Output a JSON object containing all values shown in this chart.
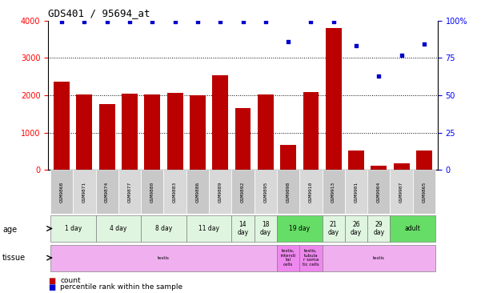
{
  "title": "GDS401 / 95694_at",
  "samples": [
    "GSM9868",
    "GSM9871",
    "GSM9874",
    "GSM9877",
    "GSM9880",
    "GSM9883",
    "GSM9886",
    "GSM9889",
    "GSM9892",
    "GSM9895",
    "GSM9898",
    "GSM9910",
    "GSM9913",
    "GSM9901",
    "GSM9904",
    "GSM9907",
    "GSM9865"
  ],
  "counts": [
    2370,
    2010,
    1760,
    2050,
    2010,
    2060,
    1990,
    2530,
    1660,
    2020,
    660,
    2080,
    3790,
    510,
    110,
    180,
    520
  ],
  "percentiles": [
    99,
    99,
    99,
    99,
    99,
    99,
    99,
    99,
    99,
    99,
    86,
    99,
    99,
    83,
    63,
    77,
    84
  ],
  "age_groups": [
    {
      "label": "1 day",
      "start": 0,
      "end": 2,
      "color": "#e0f5e0"
    },
    {
      "label": "4 day",
      "start": 2,
      "end": 4,
      "color": "#e0f5e0"
    },
    {
      "label": "8 day",
      "start": 4,
      "end": 6,
      "color": "#e0f5e0"
    },
    {
      "label": "11 day",
      "start": 6,
      "end": 8,
      "color": "#e0f5e0"
    },
    {
      "label": "14\nday",
      "start": 8,
      "end": 9,
      "color": "#e0f5e0"
    },
    {
      "label": "18\nday",
      "start": 9,
      "end": 10,
      "color": "#e0f5e0"
    },
    {
      "label": "19 day",
      "start": 10,
      "end": 12,
      "color": "#66dd66"
    },
    {
      "label": "21\nday",
      "start": 12,
      "end": 13,
      "color": "#e0f5e0"
    },
    {
      "label": "26\nday",
      "start": 13,
      "end": 14,
      "color": "#e0f5e0"
    },
    {
      "label": "29\nday",
      "start": 14,
      "end": 15,
      "color": "#e0f5e0"
    },
    {
      "label": "adult",
      "start": 15,
      "end": 17,
      "color": "#66dd66"
    }
  ],
  "tissue_groups": [
    {
      "label": "testis",
      "start": 0,
      "end": 10,
      "color": "#f0b0f0"
    },
    {
      "label": "testis,\nintersti\ntal\ncells",
      "start": 10,
      "end": 11,
      "color": "#ee88ee"
    },
    {
      "label": "testis,\ntubula\nr soma\ntic cells",
      "start": 11,
      "end": 12,
      "color": "#ee88ee"
    },
    {
      "label": "testis",
      "start": 12,
      "end": 17,
      "color": "#f0b0f0"
    }
  ],
  "bar_color": "#bb0000",
  "dot_color": "#0000cc",
  "ylim_left": [
    0,
    4000
  ],
  "ylim_right": [
    0,
    100
  ],
  "yticks_left": [
    0,
    1000,
    2000,
    3000,
    4000
  ],
  "yticks_right": [
    0,
    25,
    50,
    75,
    100
  ],
  "background_color": "#ffffff"
}
